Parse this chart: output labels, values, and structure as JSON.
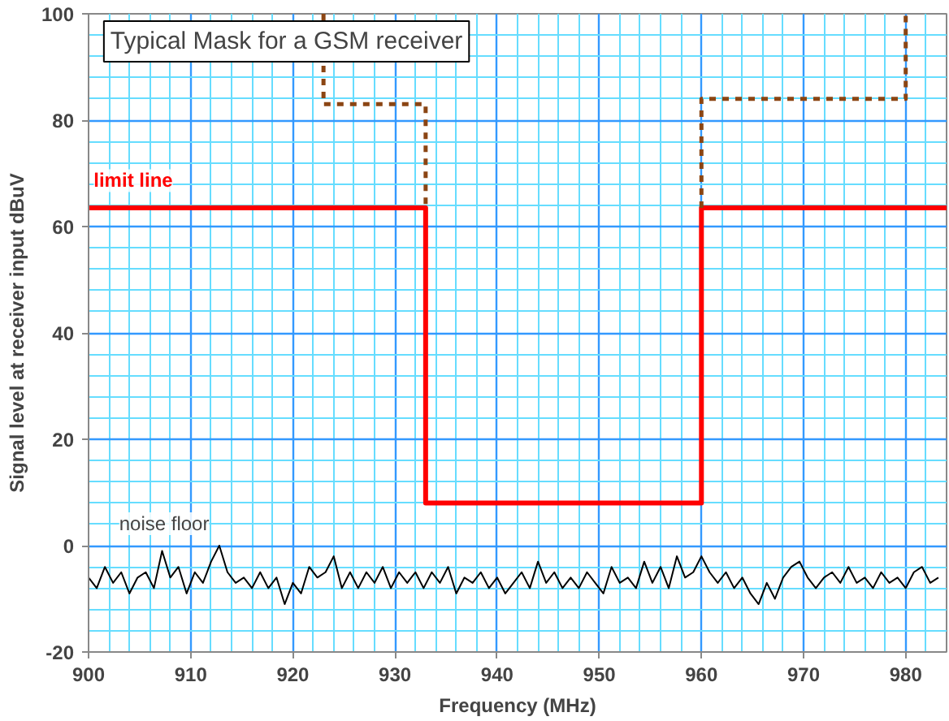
{
  "chart_data": {
    "type": "line",
    "title": "Typical Mask for a GSM receiver",
    "xlabel": "Frequency (MHz)",
    "ylabel": "Signal level at receiver input dBuV",
    "xlim": [
      900,
      984
    ],
    "xticks": [
      900,
      {
        "value": 902,
        "label": null
      },
      {
        "value": 904,
        "label": null
      },
      {
        "value": 906,
        "label": null
      },
      {
        "value": 908,
        "label": null
      },
      910,
      {
        "value": 912,
        "label": null
      },
      {
        "value": 914,
        "label": null
      },
      {
        "value": 916,
        "label": null
      },
      {
        "value": 918,
        "label": null
      },
      920,
      {
        "value": 922,
        "label": null
      },
      {
        "value": 924,
        "label": null
      },
      {
        "value": 926,
        "label": null
      },
      {
        "value": 928,
        "label": null
      },
      930,
      {
        "value": 932,
        "label": null
      },
      {
        "value": 934,
        "label": null
      },
      {
        "value": 936,
        "label": null
      },
      {
        "value": 938,
        "label": null
      },
      940,
      {
        "value": 942,
        "label": null
      },
      {
        "value": 944,
        "label": null
      },
      {
        "value": 946,
        "label": null
      },
      {
        "value": 948,
        "label": null
      },
      950,
      {
        "value": 952,
        "label": null
      },
      {
        "value": 954,
        "label": null
      },
      {
        "value": 956,
        "label": null
      },
      {
        "value": 958,
        "label": null
      },
      960,
      {
        "value": 962,
        "label": null
      },
      {
        "value": 964,
        "label": null
      },
      {
        "value": 966,
        "label": null
      },
      {
        "value": 968,
        "label": null
      },
      970,
      {
        "value": 972,
        "label": null
      },
      {
        "value": 974,
        "label": null
      },
      {
        "value": 976,
        "label": null
      },
      {
        "value": 978,
        "label": null
      },
      980,
      {
        "value": 982,
        "label": null
      }
    ],
    "ylim": [
      -20,
      100
    ],
    "yticks": [
      -20,
      {
        "value": -16,
        "label": null
      },
      {
        "value": -12,
        "label": null
      },
      {
        "value": -8,
        "label": null
      },
      {
        "value": -4,
        "label": null
      },
      0,
      {
        "value": 4,
        "label": null
      },
      {
        "value": 8,
        "label": null
      },
      {
        "value": 12,
        "label": null
      },
      {
        "value": 16,
        "label": null
      },
      20,
      {
        "value": 24,
        "label": null
      },
      {
        "value": 28,
        "label": null
      },
      {
        "value": 32,
        "label": null
      },
      {
        "value": 36,
        "label": null
      },
      40,
      {
        "value": 44,
        "label": null
      },
      {
        "value": 48,
        "label": null
      },
      {
        "value": 52,
        "label": null
      },
      {
        "value": 56,
        "label": null
      },
      60,
      {
        "value": 64,
        "label": null
      },
      {
        "value": 68,
        "label": null
      },
      {
        "value": 72,
        "label": null
      },
      {
        "value": 76,
        "label": null
      },
      80,
      {
        "value": 84,
        "label": null
      },
      {
        "value": 88,
        "label": null
      },
      {
        "value": 92,
        "label": null
      },
      {
        "value": 96,
        "label": null
      },
      100
    ],
    "grid": true,
    "legend": false,
    "series": [
      {
        "name": "limit line",
        "color": "#ff0000",
        "line_style": "solid",
        "x": [
          900,
          933,
          933,
          960,
          960,
          984
        ],
        "values": [
          63.5,
          63.5,
          8,
          8,
          63.5,
          63.5
        ]
      },
      {
        "color": "#8b4513",
        "line_style": "dashed",
        "x": [
          923,
          923,
          933,
          933
        ],
        "values": [
          100,
          83,
          83,
          63.5
        ]
      },
      {
        "color": "#8b4513",
        "line_style": "dashed",
        "x": [
          960,
          960,
          980,
          980
        ],
        "values": [
          63.5,
          84,
          84,
          100
        ]
      },
      {
        "name": "noise floor",
        "color": "#000000",
        "line_style": "solid",
        "x": [
          900,
          900.8,
          901.6,
          902.4,
          903.2,
          904,
          904.8,
          905.6,
          906.4,
          907.2,
          908,
          908.8,
          909.6,
          910.4,
          911.2,
          912,
          912.8,
          913.6,
          914.4,
          915.2,
          916,
          916.8,
          917.6,
          918.4,
          919.2,
          920,
          920.8,
          921.6,
          922.4,
          923.2,
          924,
          924.8,
          925.6,
          926.4,
          927.2,
          928,
          928.8,
          929.6,
          930.4,
          931.2,
          932,
          932.8,
          933.6,
          934.4,
          935.2,
          936,
          936.8,
          937.6,
          938.4,
          939.2,
          940,
          940.8,
          941.6,
          942.4,
          943.2,
          944,
          944.8,
          945.6,
          946.4,
          947.2,
          948,
          948.8,
          949.6,
          950.4,
          951.2,
          952,
          952.8,
          953.6,
          954.4,
          955.2,
          956,
          956.8,
          957.6,
          958.4,
          959.2,
          960,
          960.8,
          961.6,
          962.4,
          963.2,
          964,
          964.8,
          965.6,
          966.4,
          967.2,
          968,
          968.8,
          969.6,
          970.4,
          971.2,
          972,
          972.8,
          973.6,
          974.4,
          975.2,
          976,
          976.8,
          977.6,
          978.4,
          979.2,
          980,
          980.8,
          981.6,
          982.4,
          983.2
        ],
        "values": [
          -6,
          -8,
          -4,
          -7,
          -5,
          -9,
          -6,
          -5,
          -8,
          -1,
          -6,
          -4,
          -9,
          -5,
          -7,
          -3,
          0,
          -5,
          -7,
          -6,
          -8,
          -5,
          -8,
          -6,
          -11,
          -7,
          -9,
          -4,
          -6,
          -5,
          -2,
          -8,
          -5,
          -8,
          -5,
          -7,
          -4,
          -8,
          -5,
          -7,
          -5,
          -8,
          -5,
          -7,
          -4,
          -9,
          -6,
          -7,
          -5,
          -8,
          -6,
          -9,
          -7,
          -5,
          -8,
          -3,
          -7,
          -5,
          -8,
          -6,
          -8,
          -5,
          -7,
          -9,
          -4,
          -7,
          -6,
          -8,
          -3,
          -7,
          -4,
          -8,
          -2,
          -6,
          -5,
          -2,
          -5,
          -7,
          -5,
          -8,
          -6,
          -9,
          -11,
          -7,
          -10,
          -6,
          -4,
          -3,
          -6,
          -8,
          -6,
          -5,
          -7,
          -4,
          -7,
          -6,
          -8,
          -5,
          -7,
          -6,
          -8,
          -5,
          -4,
          -7,
          -6
        ]
      }
    ]
  }
}
